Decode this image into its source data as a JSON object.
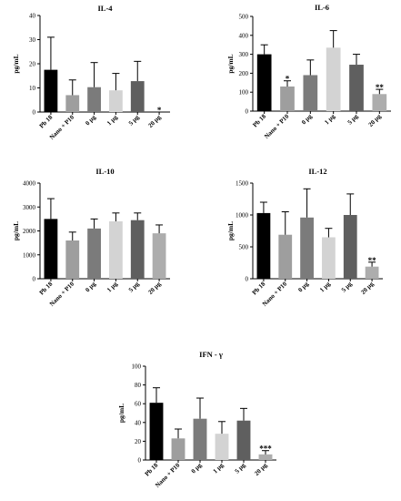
{
  "colors": [
    "#000000",
    "#9e9e9e",
    "#7b7b7b",
    "#d3d3d3",
    "#5f5f5f",
    "#adadad"
  ],
  "chart_data": [
    {
      "type": "bar",
      "title": "IL-4",
      "ylabel": "pg/mL",
      "xlabel": "",
      "categories": [
        "Pb 18",
        "Nano + P10",
        "0 μg",
        "1 μg",
        "5 μg",
        "20 μg"
      ],
      "values": [
        17.5,
        7,
        10.3,
        9,
        12.8,
        0
      ],
      "errors": [
        13.5,
        6.3,
        10.2,
        7,
        8.2,
        0
      ],
      "significance": [
        "",
        "",
        "",
        "",
        "",
        "*"
      ],
      "ylim": [
        0,
        40
      ],
      "yticks": [
        "0",
        "10",
        "20",
        "30",
        "40"
      ],
      "grid": false
    },
    {
      "type": "bar",
      "title": "IL-6",
      "ylabel": "pg/mL",
      "xlabel": "",
      "categories": [
        "Pb 18",
        "Nano + P10",
        "0 μg",
        "1 μg",
        "5 μg",
        "20 μg"
      ],
      "values": [
        300,
        130,
        190,
        335,
        245,
        90
      ],
      "errors": [
        50,
        30,
        80,
        90,
        55,
        25
      ],
      "significance": [
        "",
        "*",
        "",
        "",
        "",
        "**"
      ],
      "ylim": [
        0,
        500
      ],
      "yticks": [
        "0",
        "100",
        "200",
        "300",
        "400",
        "500"
      ],
      "grid": false
    },
    {
      "type": "bar",
      "title": "IL-10",
      "ylabel": "pg/mL",
      "xlabel": "",
      "categories": [
        "Pb 18",
        "Nano + P10",
        "0 μg",
        "1 μg",
        "5 μg",
        "20 μg"
      ],
      "values": [
        2500,
        1600,
        2100,
        2400,
        2450,
        1900
      ],
      "errors": [
        850,
        350,
        400,
        350,
        300,
        350
      ],
      "significance": [
        "",
        "",
        "",
        "",
        "",
        ""
      ],
      "ylim": [
        0,
        4000
      ],
      "yticks": [
        "0",
        "1000",
        "2000",
        "3000",
        "4000"
      ],
      "grid": false
    },
    {
      "type": "bar",
      "title": "IL-12",
      "ylabel": "pg/mL",
      "xlabel": "",
      "categories": [
        "Pb 18",
        "Nano + P10",
        "0 μg",
        "1 μg",
        "5 μg",
        "20 μg"
      ],
      "values": [
        1030,
        690,
        960,
        650,
        1000,
        190
      ],
      "errors": [
        170,
        360,
        450,
        140,
        330,
        70
      ],
      "significance": [
        "",
        "",
        "",
        "",
        "",
        "**"
      ],
      "ylim": [
        0,
        1500
      ],
      "yticks": [
        "0",
        "500",
        "1000",
        "1500"
      ],
      "grid": false
    },
    {
      "type": "bar",
      "title": "IFN - γ",
      "ylabel": "pg/mL",
      "xlabel": "",
      "categories": [
        "Pb 18",
        "Nano + P10",
        "0 μg",
        "1 μg",
        "5 μg",
        "20 μg"
      ],
      "values": [
        61,
        23,
        44,
        28,
        42,
        6
      ],
      "errors": [
        16,
        10,
        22,
        13,
        13,
        4
      ],
      "significance": [
        "",
        "",
        "",
        "",
        "",
        "***"
      ],
      "ylim": [
        0,
        100
      ],
      "yticks": [
        "0",
        "20",
        "40",
        "60",
        "80",
        "100"
      ],
      "grid": false
    }
  ]
}
